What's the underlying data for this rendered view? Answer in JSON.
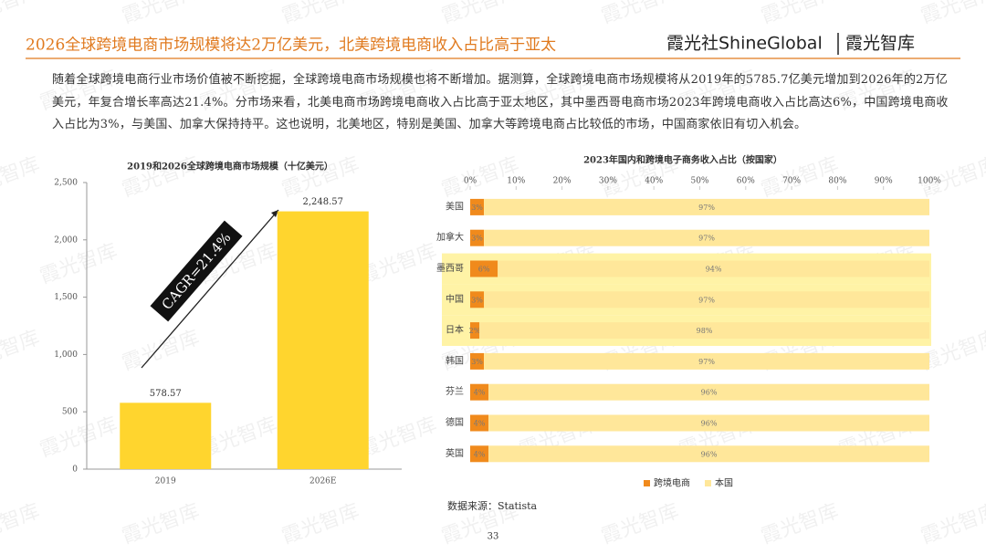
{
  "header": {
    "title": "2026全球跨境电商市场规模将达2万亿美元，北美跨境电商收入占比高于亚太",
    "brand": "霞光社ShineGlobal",
    "brand2": "霞光智库"
  },
  "paragraph": "随着全球跨境电商行业市场价值被不断挖掘，全球跨境电商市场规模也将不断增加。据测算，全球跨境电商市场规模将从2019年的5785.7亿美元增加到2026年的2万亿美元，年复合增长率高达21.4%。分市场来看，北美电商市场跨境电商收入占比高于亚太地区，其中墨西哥电商市场2023年跨境电商收入占比高达6%，中国跨境电商收入占比为3%，与美国、加拿大保持持平。这也说明，北美地区，特别是美国、加拿大等跨境电商占比较低的市场，中国商家依旧有切入机会。",
  "chart_data": [
    {
      "type": "bar",
      "orientation": "vertical",
      "title": "2019和2026全球跨境电商市场规模（十亿美元）",
      "categories": [
        "2019",
        "2026E"
      ],
      "values": [
        578.57,
        2248.57
      ],
      "value_labels": [
        "578.57",
        "2,248.57"
      ],
      "color": "#FFD52E",
      "ylim": [
        0,
        2500
      ],
      "yticks": [
        0,
        500,
        {
          "value": 1000,
          "label": "1,000"
        },
        {
          "value": 1500,
          "label": "1,500"
        },
        {
          "value": 2000,
          "label": "2,000"
        },
        {
          "value": 2500,
          "label": "2,500"
        }
      ],
      "annotation": "CAGR=21.4%"
    },
    {
      "type": "bar",
      "orientation": "horizontal",
      "stacked": true,
      "title": "2023年国内和跨境电子商务收入占比（按国家）",
      "categories": [
        "美国",
        "加拿大",
        "墨西哥",
        "中国",
        "日本",
        "韩国",
        "芬兰",
        "德国",
        "英国"
      ],
      "highlight": [
        2,
        3,
        4
      ],
      "series": [
        {
          "name": "跨境电商",
          "color": "#F08A1C",
          "values": [
            3,
            3,
            6,
            3,
            2,
            3,
            4,
            4,
            4
          ],
          "value_labels": [
            "3%",
            "3%",
            "6%",
            "3%",
            "2%",
            "3%",
            "4%",
            "4%",
            "4%"
          ]
        },
        {
          "name": "本国",
          "color": "#FFE79A",
          "values": [
            97,
            97,
            94,
            97,
            98,
            97,
            96,
            96,
            96
          ],
          "value_labels": [
            "97%",
            "97%",
            "94%",
            "97%",
            "98%",
            "97%",
            "96%",
            "96%",
            "96%"
          ]
        }
      ],
      "xlim": [
        0,
        100
      ],
      "xticks": [
        {
          "value": 0,
          "label": "0%"
        },
        {
          "value": 10,
          "label": "10%"
        },
        {
          "value": 20,
          "label": "20%"
        },
        {
          "value": 30,
          "label": "30%"
        },
        {
          "value": 40,
          "label": "40%"
        },
        {
          "value": 50,
          "label": "50%"
        },
        {
          "value": 60,
          "label": "60%"
        },
        {
          "value": 70,
          "label": "70%"
        },
        {
          "value": 80,
          "label": "80%"
        },
        {
          "value": 90,
          "label": "90%"
        },
        {
          "value": 100,
          "label": "100%"
        }
      ],
      "legend": "bottom"
    }
  ],
  "source": "数据来源：Statista",
  "page_number": "33",
  "watermark": "霞光智库"
}
